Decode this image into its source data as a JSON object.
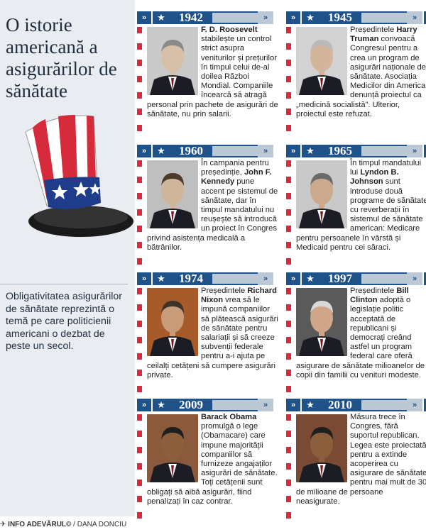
{
  "title": "O istorie americană a asigurărilor de sănătate",
  "side_note": "Obligativitatea asigurărilor de sănătate reprezintă o temă pe care politicienii americani o dezbat de peste un secol.",
  "entries": [
    {
      "year": "1942",
      "bold": "F. D. Roosevelt",
      "text_before": "",
      "text_after": " stabilește un control strict asupra veniturilor și prețurilor în timpul celui de-al doilea Război Mondial. Companiile încearcă să atragă personal prin pachete de asigurări de sănătate, nu prin salarii."
    },
    {
      "year": "1945",
      "bold": "Harry Truman",
      "text_before": "Președintele ",
      "text_after": " convoacă Congresul pentru a crea un program de asigurări naționale de sănătate. Asociația Medicilor din America denunță proiectul ca „medicină socialistă”. Ulterior, proiectul este refuzat."
    },
    {
      "year": "1960",
      "bold": "John F. Kennedy",
      "text_before": "În campania pentru președinție, ",
      "text_after": " pune accent pe sistemul de sănătate, dar în timpul mandatului nu reușește să introducă un proiect în Congres privind asistența medicală a bătrânilor."
    },
    {
      "year": "1965",
      "bold": "Lyndon B. Johnson",
      "text_before": "În timpul mandatului lui ",
      "text_after": " sunt introduse două programe de sănătate cu reverberații în sistemul de sănătate american: Medicare pentru persoanele în vârstă și Medicaid pentru cei săraci."
    },
    {
      "year": "1974",
      "bold": "Richard Nixon",
      "text_before": "Președintele ",
      "text_after": " vrea să le impună companiilor să plătească asigurări de sănătate pentru salariații și să creeze subvenții federale pentru a-i ajuta pe ceilalți cetățeni să cumpere asigurări private."
    },
    {
      "year": "1997",
      "bold": "Bill Clinton",
      "text_before": "Președintele ",
      "text_after": " adoptă o legislație politic acceptată de republicani și democrați creând astfel un program federal care oferă asigurare de sănătate milioanelor de copii din familii cu venituri modeste."
    },
    {
      "year": "2009",
      "bold": "Barack Obama",
      "text_before": "",
      "text_after": " promulgă o lege (Obamacare) care impune majorității companiilor să furnizeze angajaților asigurări de sănătate. Toți cetățenii sunt obligați să aibă asigurări, fiind penalizați în caz contrar."
    },
    {
      "year": "2010",
      "bold": "",
      "text_before": "Măsura trece în Congres, fără suportul republican. Legea este proiectată pentru a extinde acoperirea cu asigurare de sănătate pentru mai mult de 30 de milioane de persoane neasigurate.",
      "text_after": ""
    }
  ],
  "footer": {
    "brand": "INFO ADEVĂRUL©",
    "author": "/ DANA DONCIU"
  },
  "icons": {
    "chevron": "double-chevron-right",
    "star": "star",
    "hat": "uncle-sam-hat"
  },
  "colors": {
    "bar": "#1f5289",
    "accent": "#d52b3a",
    "sidebar": "#e9edf2"
  }
}
